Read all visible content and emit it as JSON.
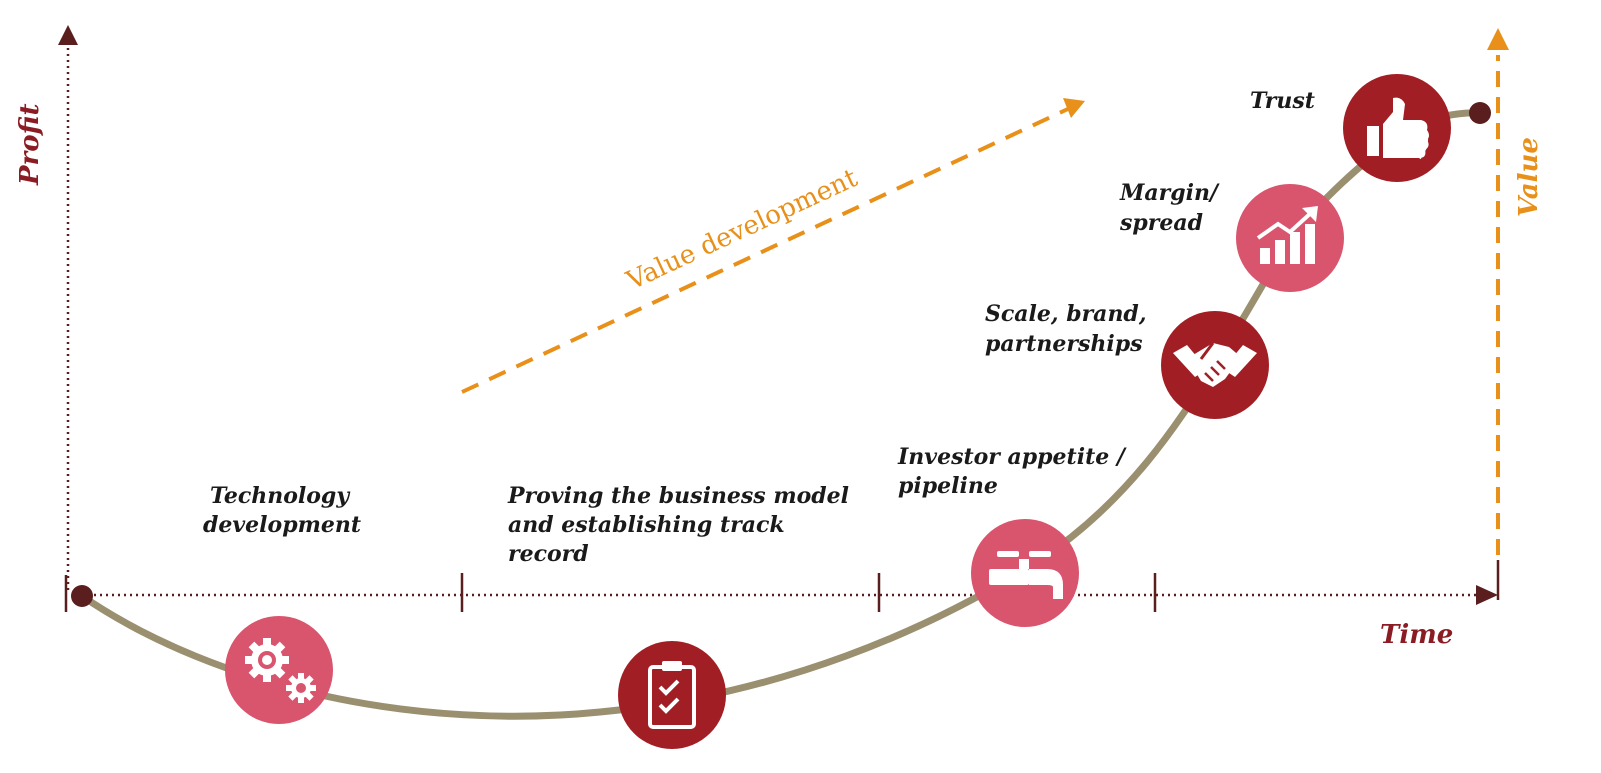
{
  "axes": {
    "y_label": "Profit",
    "x_label": "Time",
    "value_label": "Value"
  },
  "arrow_label": "Value development",
  "stages": [
    {
      "lines": [
        "Technology",
        "development"
      ],
      "icon": "gears-icon"
    },
    {
      "lines": [
        "Proving the business model",
        "and establishing track",
        "record"
      ],
      "icon": "clipboard-checklist-icon"
    },
    {
      "lines": [
        "Investor appetite /",
        "pipeline"
      ],
      "icon": "tap-faucet-icon"
    },
    {
      "lines": [
        "Scale, brand,",
        "partnerships"
      ],
      "icon": "handshake-icon"
    },
    {
      "lines": [
        "Margin/",
        "spread"
      ],
      "icon": "growth-chart-icon"
    },
    {
      "lines": [
        "Trust"
      ],
      "icon": "thumbs-up-icon"
    }
  ],
  "colors": {
    "axis": "#5a1e1e",
    "profit_time_text": "#8b1c24",
    "value_orange": "#e8901a",
    "curve": "#9a9070",
    "pink": "#d9546d",
    "crimson": "#a11f24"
  }
}
